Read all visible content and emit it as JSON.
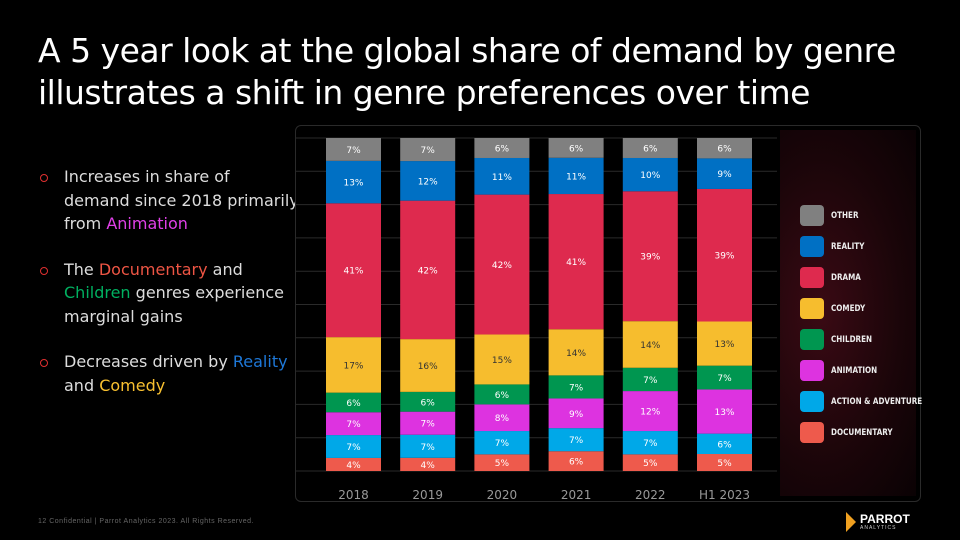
{
  "title": "A 5 year look at the global share of demand by genre illustrates a shift in genre preferences over time",
  "bullets": [
    {
      "parts": [
        {
          "t": "Increases in share of demand since 2018 primarily from ",
          "c": "#dddddd"
        },
        {
          "t": "Animation",
          "c": "#e040e8"
        }
      ]
    },
    {
      "parts": [
        {
          "t": "The ",
          "c": "#dddddd"
        },
        {
          "t": "Documentary",
          "c": "#ee5544"
        },
        {
          "t": " and ",
          "c": "#dddddd"
        },
        {
          "t": "Children",
          "c": "#00b060"
        },
        {
          "t": " genres experience marginal gains",
          "c": "#dddddd"
        }
      ]
    },
    {
      "parts": [
        {
          "t": "Decreases driven by ",
          "c": "#dddddd"
        },
        {
          "t": "Reality",
          "c": "#1e78d8"
        },
        {
          "t": " and ",
          "c": "#dddddd"
        },
        {
          "t": "Comedy",
          "c": "#f8c030"
        }
      ]
    }
  ],
  "chart_data": {
    "type": "bar",
    "stacked": true,
    "categories": [
      "2018",
      "2019",
      "2020",
      "2021",
      "2022",
      "H1 2023"
    ],
    "ylim": [
      0,
      100
    ],
    "grid": true,
    "legend_placement": "right",
    "series": [
      {
        "name": "DOCUMENTARY",
        "color": "#ee5a4c",
        "values": [
          4,
          4,
          5,
          6,
          5,
          5
        ]
      },
      {
        "name": "ACTION & ADVENTURE",
        "color": "#00a8e8",
        "values": [
          7,
          7,
          7,
          7,
          7,
          6
        ]
      },
      {
        "name": "ANIMATION",
        "color": "#dd33e0",
        "values": [
          7,
          7,
          8,
          9,
          12,
          13
        ]
      },
      {
        "name": "CHILDREN",
        "color": "#009650",
        "values": [
          6,
          6,
          6,
          7,
          7,
          7
        ]
      },
      {
        "name": "COMEDY",
        "color": "#f6bd2e",
        "values": [
          17,
          16,
          15,
          14,
          14,
          13
        ]
      },
      {
        "name": "DRAMA",
        "color": "#de2a4e",
        "values": [
          41,
          42,
          42,
          41,
          39,
          39
        ]
      },
      {
        "name": "REALITY",
        "color": "#0070c4",
        "values": [
          13,
          12,
          11,
          11,
          10,
          9
        ]
      },
      {
        "name": "OTHER",
        "color": "#808080",
        "values": [
          7,
          7,
          6,
          6,
          6,
          6
        ]
      }
    ]
  },
  "legend_order": [
    7,
    6,
    5,
    4,
    3,
    2,
    1,
    0
  ],
  "footer": "12 Confidential | Parrot Analytics 2023. All Rights Reserved.",
  "logo": {
    "name": "PARROT",
    "sub": "ANALYTICS"
  }
}
